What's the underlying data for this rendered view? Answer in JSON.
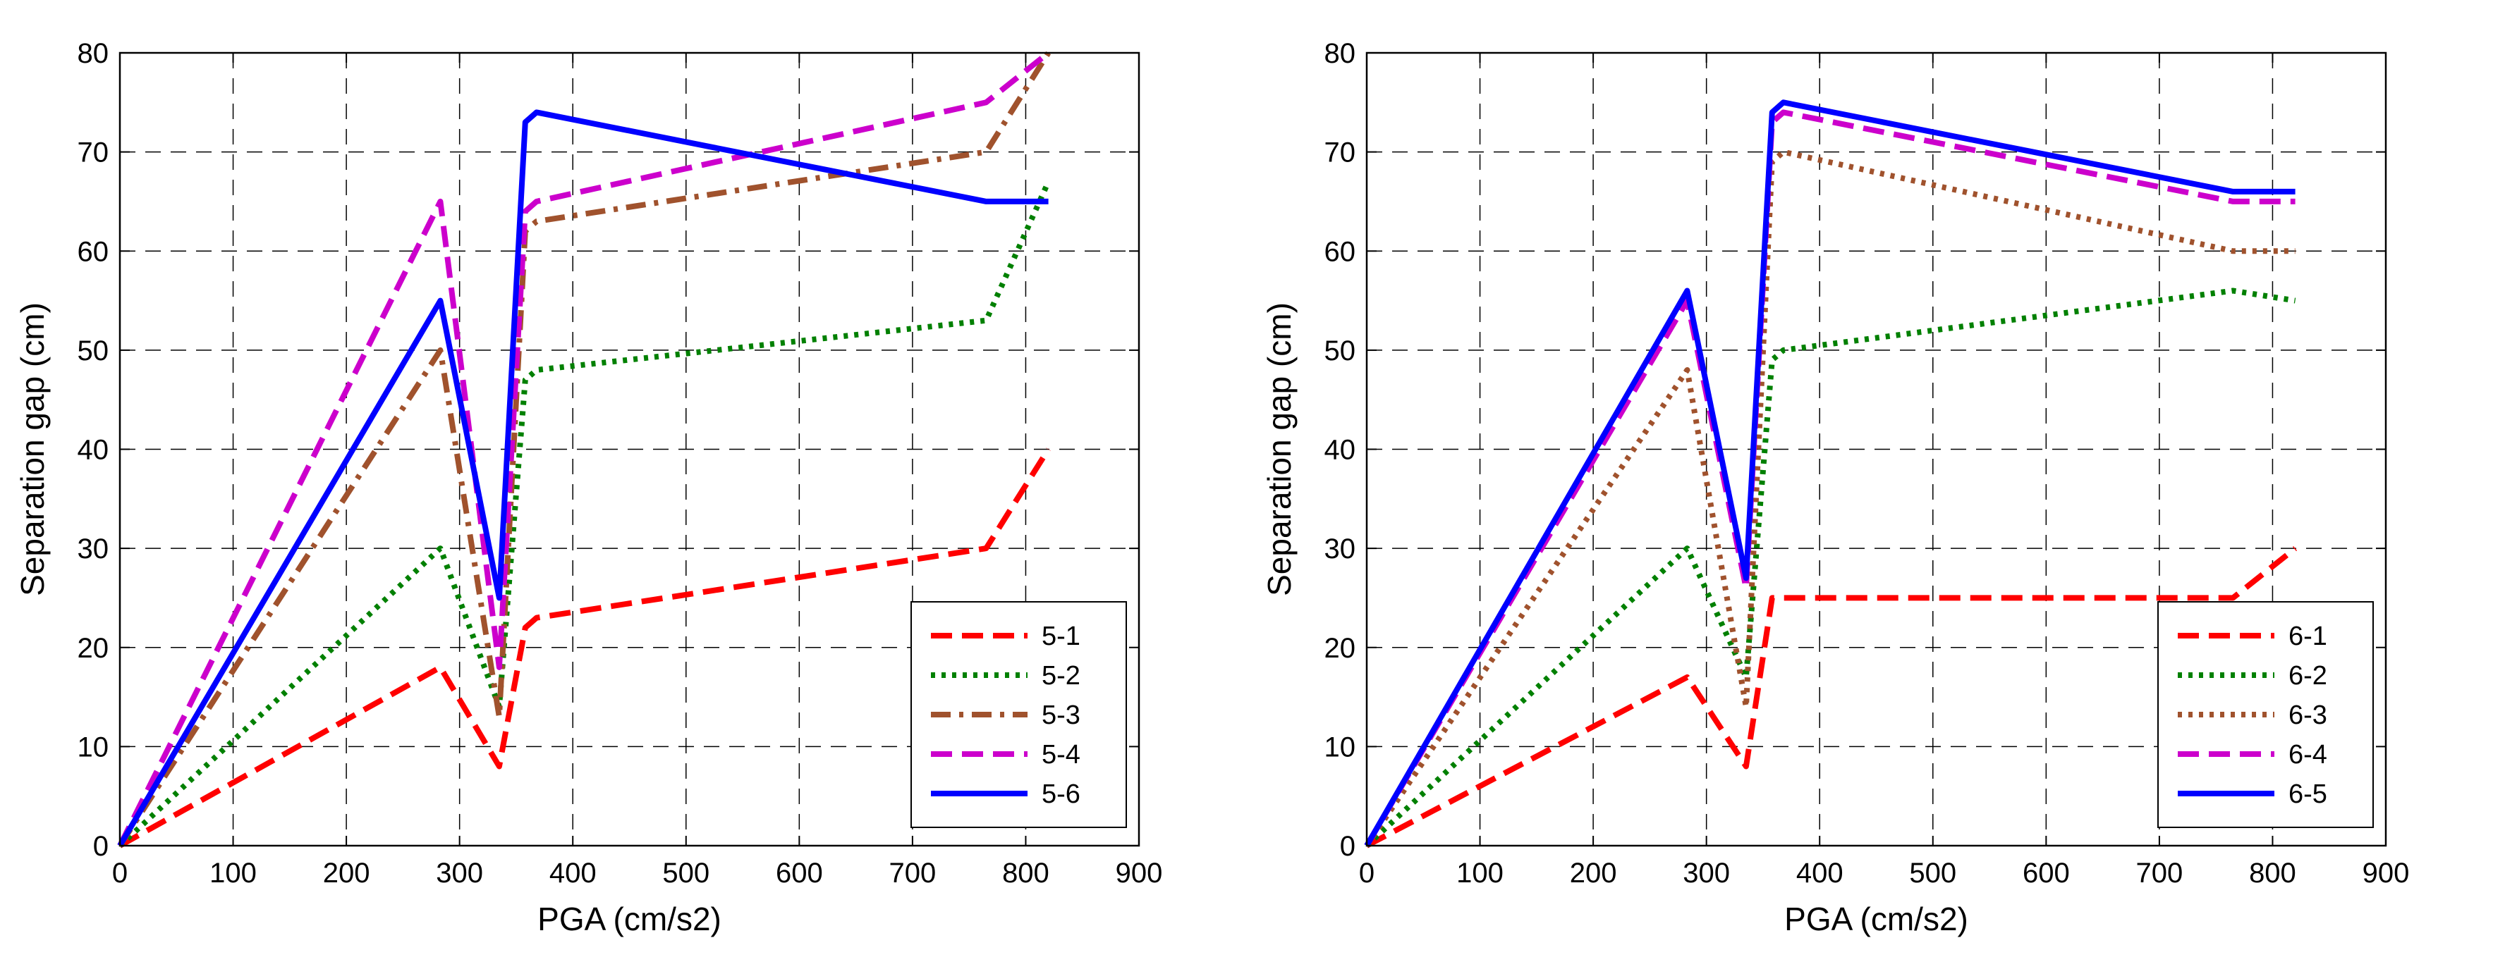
{
  "chart_data": [
    {
      "type": "line",
      "xlabel": "PGA (cm/s2)",
      "ylabel": "Separation gap (cm)",
      "xlim": [
        0,
        900
      ],
      "ylim": [
        0,
        80
      ],
      "xticks": [
        0,
        100,
        200,
        300,
        400,
        500,
        600,
        700,
        800,
        900
      ],
      "yticks": [
        0,
        10,
        20,
        30,
        40,
        50,
        60,
        70,
        80
      ],
      "grid": true,
      "legend_position": "bottom-right",
      "series": [
        {
          "name": "5-1",
          "color": "#ff0000",
          "style": "dashed",
          "x": [
            0,
            283,
            335,
            358,
            368,
            765,
            820
          ],
          "y": [
            0,
            18,
            8,
            22,
            23,
            30,
            40
          ]
        },
        {
          "name": "5-2",
          "color": "#008000",
          "style": "dotted",
          "x": [
            0,
            283,
            335,
            358,
            368,
            765,
            820
          ],
          "y": [
            0,
            30,
            14,
            47,
            48,
            53,
            67
          ]
        },
        {
          "name": "5-3",
          "color": "#a0522d",
          "style": "dashdot",
          "x": [
            0,
            283,
            335,
            358,
            368,
            765,
            820
          ],
          "y": [
            0,
            50,
            13,
            62,
            63,
            70,
            80
          ]
        },
        {
          "name": "5-4",
          "color": "#cc00cc",
          "style": "dashed",
          "x": [
            0,
            283,
            335,
            358,
            368,
            765,
            820
          ],
          "y": [
            0,
            65,
            18,
            64,
            65,
            75,
            80
          ]
        },
        {
          "name": "5-6",
          "color": "#0000ff",
          "style": "solid",
          "x": [
            0,
            283,
            335,
            358,
            368,
            765,
            820
          ],
          "y": [
            0,
            55,
            25,
            73,
            74,
            65,
            65
          ]
        }
      ]
    },
    {
      "type": "line",
      "xlabel": "PGA (cm/s2)",
      "ylabel": "Separation gap (cm)",
      "xlim": [
        0,
        900
      ],
      "ylim": [
        0,
        80
      ],
      "xticks": [
        0,
        100,
        200,
        300,
        400,
        500,
        600,
        700,
        800,
        900
      ],
      "yticks": [
        0,
        10,
        20,
        30,
        40,
        50,
        60,
        70,
        80
      ],
      "grid": true,
      "legend_position": "bottom-right",
      "series": [
        {
          "name": "6-1",
          "color": "#ff0000",
          "style": "dashed",
          "x": [
            0,
            283,
            335,
            358,
            368,
            765,
            820
          ],
          "y": [
            0,
            17,
            8,
            25,
            25,
            25,
            30
          ]
        },
        {
          "name": "6-2",
          "color": "#008000",
          "style": "dotted",
          "x": [
            0,
            283,
            335,
            358,
            368,
            765,
            820
          ],
          "y": [
            0,
            30,
            17,
            49,
            50,
            56,
            55
          ]
        },
        {
          "name": "6-3",
          "color": "#a0522d",
          "style": "dotted",
          "x": [
            0,
            283,
            335,
            358,
            368,
            765,
            820
          ],
          "y": [
            0,
            48,
            14,
            69,
            70,
            60,
            60
          ]
        },
        {
          "name": "6-4",
          "color": "#cc00cc",
          "style": "dashed",
          "x": [
            0,
            283,
            335,
            358,
            368,
            765,
            820
          ],
          "y": [
            0,
            55,
            26,
            73,
            74,
            65,
            65
          ]
        },
        {
          "name": "6-5",
          "color": "#0000ff",
          "style": "solid",
          "x": [
            0,
            283,
            335,
            358,
            368,
            765,
            820
          ],
          "y": [
            0,
            56,
            27,
            74,
            75,
            66,
            66
          ]
        }
      ]
    }
  ]
}
